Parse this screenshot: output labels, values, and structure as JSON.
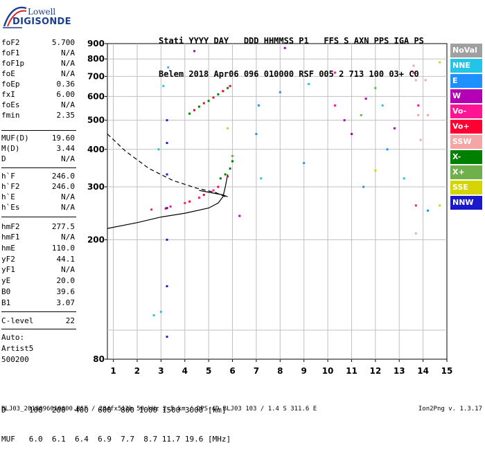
{
  "logo": {
    "line1": "Lowell",
    "line2": "DIGISONDE"
  },
  "header": {
    "line1": "Stati YYYY DAY   DDD HHMMSS P1   FFS S AXN PPS IGA PS",
    "line2": "Belem 2018 Apr06 096 010000 RSF 005 2 713 100 03+ C0"
  },
  "params": {
    "group1": [
      {
        "label": "foF2",
        "value": "5.700"
      },
      {
        "label": "foF1",
        "value": "N/A"
      },
      {
        "label": "foF1p",
        "value": "N/A"
      },
      {
        "label": "foE",
        "value": "N/A"
      },
      {
        "label": "foEp",
        "value": "0.36"
      },
      {
        "label": "fxI",
        "value": "6.00"
      },
      {
        "label": "foEs",
        "value": "N/A"
      },
      {
        "label": "fmin",
        "value": "2.35"
      }
    ],
    "group2": [
      {
        "label": "MUF(D)",
        "value": "19.60"
      },
      {
        "label": "M(D)",
        "value": "3.44"
      },
      {
        "label": "D",
        "value": "N/A"
      }
    ],
    "group3": [
      {
        "label": "h`F",
        "value": "246.0"
      },
      {
        "label": "h`F2",
        "value": "246.0"
      },
      {
        "label": "h`E",
        "value": "N/A"
      },
      {
        "label": "h`Es",
        "value": "N/A"
      }
    ],
    "group4": [
      {
        "label": "hmF2",
        "value": "277.5"
      },
      {
        "label": "hmF1",
        "value": "N/A"
      },
      {
        "label": "hmE",
        "value": "110.0"
      },
      {
        "label": "yF2",
        "value": "44.1"
      },
      {
        "label": "yF1",
        "value": "N/A"
      },
      {
        "label": "yE",
        "value": "20.0"
      },
      {
        "label": "B0",
        "value": "39.6"
      },
      {
        "label": "B1",
        "value": "3.07"
      }
    ],
    "clevel": {
      "label": "C-level",
      "value": "22"
    },
    "auto": [
      "Auto:",
      "Artist5",
      "500200"
    ]
  },
  "bottom": {
    "line1": "D     100  200  400  600  800 1000 1500 3000 [km]",
    "line2": "MUF   6.0  6.1  6.4  6.9  7.7  8.7 11.7 19.6 [MHz]"
  },
  "footer": "BLJ03_2018096010000.RSF / 284fx512h 50 kHz 2.5 km / DPS-4D BLJ03 103 / 1.4 S 311.6 E",
  "version": "Ion2Png v. 1.3.17",
  "legend": [
    {
      "label": "NoVal",
      "color": "#a0a0a0"
    },
    {
      "label": "NNE",
      "color": "#22c4e8"
    },
    {
      "label": "E",
      "color": "#1e90ff"
    },
    {
      "label": "W",
      "color": "#b400b4"
    },
    {
      "label": "Vo-",
      "color": "#ff1493"
    },
    {
      "label": "Vo+",
      "color": "#ff0033"
    },
    {
      "label": "SSW",
      "color": "#f4a6a6"
    },
    {
      "label": "X-",
      "color": "#008000"
    },
    {
      "label": "X+",
      "color": "#6fb04a"
    },
    {
      "label": "SSE",
      "color": "#d4d400"
    },
    {
      "label": "NNW",
      "color": "#1a1acc"
    }
  ],
  "chart_data": {
    "type": "scatter",
    "title": "",
    "xlabel": "",
    "ylabel": "",
    "x_ticks": [
      1,
      2,
      3,
      4,
      5,
      6,
      7,
      8,
      9,
      10,
      11,
      12,
      13,
      14,
      15
    ],
    "y_ticks": [
      80,
      200,
      300,
      400,
      500,
      600,
      700,
      800,
      900
    ],
    "xlim": [
      0.75,
      15
    ],
    "ylim": [
      80,
      900
    ],
    "y_scale": "log",
    "grid": true,
    "series": [
      {
        "name": "X-",
        "color": "#008000",
        "points": [
          [
            4.2,
            526
          ],
          [
            4.6,
            555
          ],
          [
            5.0,
            580
          ],
          [
            5.4,
            610
          ],
          [
            5.8,
            640
          ],
          [
            5.5,
            320
          ],
          [
            5.7,
            330
          ],
          [
            5.9,
            345
          ],
          [
            6.0,
            365
          ]
        ]
      },
      {
        "name": "Vo+",
        "color": "#ff0033",
        "points": [
          [
            4.4,
            540
          ],
          [
            4.8,
            570
          ],
          [
            5.2,
            595
          ],
          [
            5.6,
            625
          ],
          [
            5.9,
            650
          ],
          [
            3.2,
            254
          ],
          [
            4.2,
            268
          ],
          [
            4.8,
            282
          ],
          [
            5.4,
            300
          ],
          [
            5.8,
            325
          ]
        ]
      },
      {
        "name": "Vo-",
        "color": "#ff1493",
        "points": [
          [
            2.6,
            252
          ],
          [
            3.4,
            258
          ],
          [
            4.0,
            265
          ],
          [
            4.6,
            276
          ],
          [
            5.2,
            292
          ],
          [
            10.3,
            720
          ],
          [
            10.3,
            560
          ],
          [
            13.6,
            720
          ],
          [
            13.8,
            560
          ],
          [
            13.7,
            260
          ]
        ]
      },
      {
        "name": "NNE",
        "color": "#22c4e8",
        "points": [
          [
            2.7,
            112
          ],
          [
            3.0,
            115
          ],
          [
            2.9,
            400
          ],
          [
            3.1,
            650
          ],
          [
            3.3,
            750
          ],
          [
            7.2,
            320
          ],
          [
            9.2,
            660
          ],
          [
            12.3,
            560
          ],
          [
            13.2,
            320
          ]
        ]
      },
      {
        "name": "E",
        "color": "#1e90ff",
        "points": [
          [
            7.0,
            450
          ],
          [
            7.1,
            560
          ],
          [
            8.0,
            620
          ],
          [
            9.0,
            360
          ],
          [
            11.5,
            300
          ],
          [
            12.5,
            400
          ],
          [
            14.2,
            250
          ]
        ]
      },
      {
        "name": "W",
        "color": "#b400b4",
        "points": [
          [
            4.4,
            850
          ],
          [
            6.3,
            240
          ],
          [
            8.2,
            870
          ],
          [
            10.7,
            500
          ],
          [
            11.0,
            450
          ],
          [
            11.6,
            590
          ],
          [
            12.8,
            470
          ]
        ]
      },
      {
        "name": "SSW",
        "color": "#f4a6a6",
        "points": [
          [
            13.6,
            760
          ],
          [
            13.7,
            680
          ],
          [
            13.8,
            520
          ],
          [
            13.9,
            430
          ],
          [
            14.1,
            680
          ],
          [
            14.2,
            520
          ],
          [
            13.7,
            210
          ]
        ]
      },
      {
        "name": "NNW",
        "color": "#1a1acc",
        "points": [
          [
            3.25,
            95
          ],
          [
            3.25,
            140
          ],
          [
            3.25,
            200
          ],
          [
            3.25,
            255
          ],
          [
            3.25,
            330
          ],
          [
            3.25,
            420
          ],
          [
            3.25,
            500
          ]
        ]
      },
      {
        "name": "SSE",
        "color": "#d4d400",
        "points": [
          [
            5.8,
            470
          ],
          [
            12.0,
            340
          ],
          [
            14.7,
            780
          ],
          [
            14.7,
            260
          ]
        ]
      },
      {
        "name": "X+",
        "color": "#6fb04a",
        "points": [
          [
            6.0,
            380
          ],
          [
            11.4,
            520
          ],
          [
            12.0,
            640
          ]
        ]
      }
    ],
    "lines": [
      {
        "style": "dashed",
        "points": [
          [
            0.75,
            450
          ],
          [
            1.5,
            395
          ],
          [
            2.5,
            345
          ],
          [
            3.5,
            315
          ],
          [
            4.5,
            297
          ],
          [
            5.3,
            287
          ],
          [
            5.7,
            278
          ]
        ]
      },
      {
        "style": "solid",
        "points": [
          [
            0.75,
            218
          ],
          [
            2,
            228
          ],
          [
            3,
            238
          ],
          [
            4,
            245
          ],
          [
            5,
            255
          ],
          [
            5.4,
            265
          ],
          [
            5.6,
            278
          ],
          [
            5.7,
            300
          ],
          [
            5.8,
            330
          ]
        ]
      },
      {
        "style": "solid",
        "points": [
          [
            4.6,
            292
          ],
          [
            5.2,
            286
          ],
          [
            5.6,
            282
          ],
          [
            5.8,
            278
          ]
        ]
      }
    ]
  }
}
